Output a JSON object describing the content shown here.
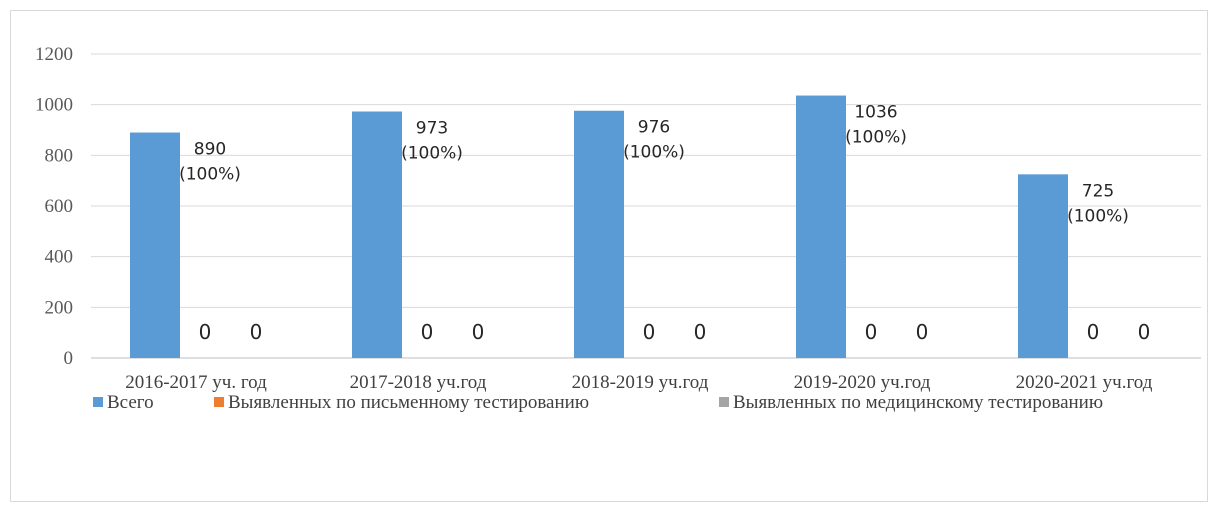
{
  "chart_data": {
    "type": "bar",
    "categories": [
      "2016-2017 уч. год",
      "2017-2018 уч.год",
      "2018-2019  уч.год",
      "2019-2020 уч.год",
      "2020-2021 уч.год"
    ],
    "series": [
      {
        "name": "Всего",
        "values": [
          890,
          973,
          976,
          1036,
          725
        ],
        "color": "#5b9bd5",
        "labels": [
          [
            "890",
            "(100%)"
          ],
          [
            "973",
            "(100%)"
          ],
          [
            "976",
            "(100%)"
          ],
          [
            "1036",
            "(100%)"
          ],
          [
            "725",
            "(100%)"
          ]
        ]
      },
      {
        "name": "Выявленных по письменному тестированию",
        "values": [
          0,
          0,
          0,
          0,
          0
        ],
        "color": "#ed7d31",
        "labels": [
          [
            "0"
          ],
          [
            "0"
          ],
          [
            "0"
          ],
          [
            "0"
          ],
          [
            "0"
          ]
        ]
      },
      {
        "name": "Выявленных по медицинскому тестированию",
        "values": [
          0,
          0,
          0,
          0,
          0
        ],
        "color": "#a5a5a5",
        "labels": [
          [
            "0"
          ],
          [
            "0"
          ],
          [
            "0"
          ],
          [
            "0"
          ],
          [
            "0"
          ]
        ]
      }
    ],
    "yticks": [
      0,
      200,
      400,
      600,
      800,
      1000,
      1200
    ],
    "ylim": [
      0,
      1200
    ],
    "grid": true,
    "legend": "bottom",
    "gridColor": "#d9d9d9",
    "axisColor": "#bfbfbf"
  }
}
